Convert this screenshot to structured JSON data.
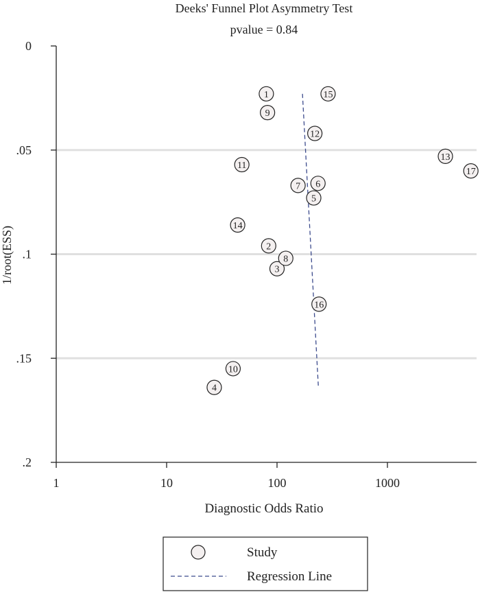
{
  "chart_data": {
    "type": "scatter",
    "title": "Deeks' Funnel Plot Asymmetry Test",
    "subtitle": "pvalue = 0.84",
    "xlabel": "Diagnostic Odds Ratio",
    "ylabel": "1/root(ESS)",
    "x_scale": "log",
    "x_ticks": [
      1,
      10,
      100,
      1000
    ],
    "x_tick_labels": [
      "1",
      "10",
      "100",
      "1000"
    ],
    "y_reversed": true,
    "ylim": [
      0,
      0.2
    ],
    "y_ticks": [
      0,
      0.05,
      0.1,
      0.15,
      0.2
    ],
    "y_tick_labels": [
      "0",
      ".05",
      ".1",
      ".15",
      ".2"
    ],
    "grid": "horizontal",
    "series": [
      {
        "name": "Study",
        "points": [
          {
            "label": "1",
            "x": 80,
            "y": 0.023
          },
          {
            "label": "2",
            "x": 84,
            "y": 0.096
          },
          {
            "label": "3",
            "x": 100,
            "y": 0.107
          },
          {
            "label": "4",
            "x": 27,
            "y": 0.164
          },
          {
            "label": "5",
            "x": 215,
            "y": 0.073
          },
          {
            "label": "6",
            "x": 235,
            "y": 0.066
          },
          {
            "label": "7",
            "x": 155,
            "y": 0.067
          },
          {
            "label": "8",
            "x": 120,
            "y": 0.102
          },
          {
            "label": "9",
            "x": 82,
            "y": 0.032
          },
          {
            "label": "10",
            "x": 40,
            "y": 0.155
          },
          {
            "label": "11",
            "x": 48,
            "y": 0.057
          },
          {
            "label": "12",
            "x": 220,
            "y": 0.042
          },
          {
            "label": "13",
            "x": 3350,
            "y": 0.053
          },
          {
            "label": "14",
            "x": 44,
            "y": 0.086
          },
          {
            "label": "15",
            "x": 290,
            "y": 0.023
          },
          {
            "label": "16",
            "x": 240,
            "y": 0.124
          },
          {
            "label": "17",
            "x": 5700,
            "y": 0.06
          }
        ]
      },
      {
        "name": "Regression Line",
        "line": [
          {
            "x": 170,
            "y": 0.023
          },
          {
            "x": 237,
            "y": 0.164
          }
        ]
      }
    ],
    "legend": {
      "position": "bottom",
      "items": [
        {
          "label": "Study",
          "marker": "circle"
        },
        {
          "label": "Regression Line",
          "marker": "dashed-line"
        }
      ]
    },
    "colors": {
      "axis": "#222222",
      "grid": "#e0e0e0",
      "marker_fill": "#f4f0f0",
      "regression": "#3b4a8c"
    }
  }
}
